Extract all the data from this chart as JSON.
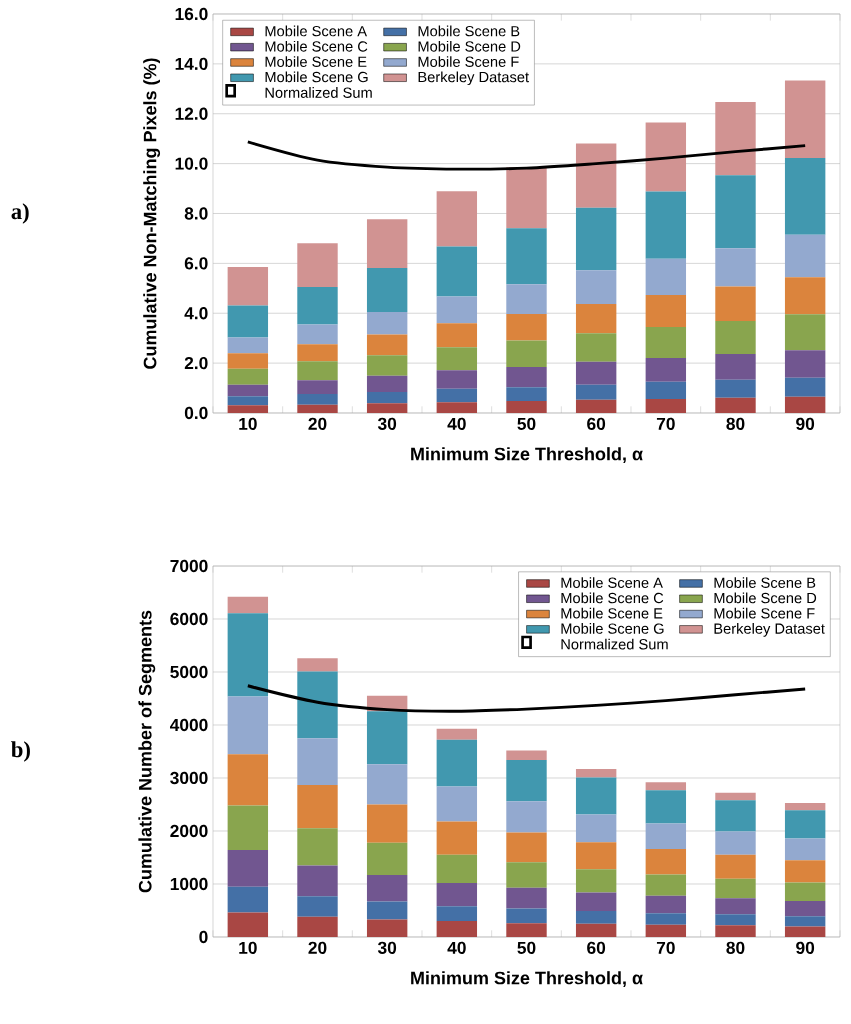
{
  "chart_data": [
    {
      "type": "bar",
      "stacked": true,
      "categories": [
        "10",
        "20",
        "30",
        "40",
        "50",
        "60",
        "70",
        "80",
        "90"
      ],
      "xlabel": "Minimum Size Threshold, α",
      "ylabel": "Cumulative Non-Matching Pixels (%)",
      "ylim": [
        0,
        16
      ],
      "yticks": [
        {
          "value": 0,
          "label": "0.0"
        },
        {
          "value": 2,
          "label": "2.0"
        },
        {
          "value": 4,
          "label": "4.0"
        },
        {
          "value": 6,
          "label": "6.0"
        },
        {
          "value": 8,
          "label": "8.0"
        },
        {
          "value": 10,
          "label": "10.0"
        },
        {
          "value": 12,
          "label": "12.0"
        },
        {
          "value": 14,
          "label": "14.0"
        },
        {
          "value": 16,
          "label": "16.0"
        }
      ],
      "grid": "y",
      "legend": "top left",
      "annotations": [
        "a)"
      ],
      "series": [
        {
          "name": "Mobile Scene A",
          "color": "#a94744",
          "values": [
            0.31,
            0.33,
            0.39,
            0.43,
            0.48,
            0.53,
            0.56,
            0.61,
            0.65
          ]
        },
        {
          "name": "Mobile Scene B",
          "color": "#4470a6",
          "values": [
            0.36,
            0.43,
            0.45,
            0.54,
            0.55,
            0.6,
            0.69,
            0.72,
            0.76
          ]
        },
        {
          "name": "Mobile Scene C",
          "color": "#715690",
          "values": [
            0.46,
            0.55,
            0.65,
            0.74,
            0.81,
            0.92,
            0.96,
            1.04,
            1.11
          ]
        },
        {
          "name": "Mobile Scene D",
          "color": "#89a54e",
          "values": [
            0.64,
            0.76,
            0.83,
            0.93,
            1.07,
            1.15,
            1.24,
            1.32,
            1.44
          ]
        },
        {
          "name": "Mobile Scene E",
          "color": "#db843d",
          "values": [
            0.63,
            0.69,
            0.83,
            0.96,
            1.06,
            1.17,
            1.28,
            1.38,
            1.48
          ]
        },
        {
          "name": "Mobile Scene F",
          "color": "#93a9cf",
          "values": [
            0.63,
            0.79,
            0.9,
            1.07,
            1.19,
            1.35,
            1.46,
            1.54,
            1.71
          ]
        },
        {
          "name": "Mobile Scene G",
          "color": "#4198af",
          "values": [
            1.28,
            1.5,
            1.76,
            2.01,
            2.25,
            2.51,
            2.69,
            2.92,
            3.08
          ]
        },
        {
          "name": "Berkeley Dataset",
          "color": "#d19392",
          "values": [
            1.54,
            1.76,
            1.96,
            2.21,
            2.44,
            2.58,
            2.77,
            2.94,
            3.1
          ]
        },
        {
          "name": "Normalized Sum",
          "type": "line",
          "color": "#000000",
          "values": [
            10.87,
            10.14,
            9.86,
            9.78,
            9.82,
            10.0,
            10.22,
            10.48,
            10.72
          ]
        }
      ]
    },
    {
      "type": "bar",
      "stacked": true,
      "categories": [
        "10",
        "20",
        "30",
        "40",
        "50",
        "60",
        "70",
        "80",
        "90"
      ],
      "xlabel": "Minimum Size Threshold, α",
      "ylabel": "Cumulative Number of Segments",
      "ylim": [
        0,
        7000
      ],
      "yticks": [
        0,
        1000,
        2000,
        3000,
        4000,
        5000,
        6000,
        7000
      ],
      "grid": "y",
      "legend": "top right",
      "annotations": [
        "b)"
      ],
      "series": [
        {
          "name": "Mobile Scene A",
          "color": "#a94744",
          "values": [
            460,
            380,
            330,
            300,
            260,
            250,
            230,
            220,
            200
          ]
        },
        {
          "name": "Mobile Scene B",
          "color": "#4470a6",
          "values": [
            490,
            390,
            340,
            280,
            280,
            240,
            220,
            210,
            190
          ]
        },
        {
          "name": "Mobile Scene C",
          "color": "#715690",
          "values": [
            690,
            580,
            500,
            440,
            390,
            350,
            330,
            300,
            290
          ]
        },
        {
          "name": "Mobile Scene D",
          "color": "#89a54e",
          "values": [
            840,
            700,
            610,
            530,
            480,
            440,
            400,
            370,
            350
          ]
        },
        {
          "name": "Mobile Scene E",
          "color": "#db843d",
          "values": [
            970,
            820,
            720,
            630,
            560,
            510,
            480,
            450,
            420
          ]
        },
        {
          "name": "Mobile Scene F",
          "color": "#93a9cf",
          "values": [
            1090,
            880,
            760,
            660,
            590,
            520,
            480,
            440,
            410
          ]
        },
        {
          "name": "Mobile Scene G",
          "color": "#4198af",
          "values": [
            1570,
            1260,
            1000,
            880,
            780,
            700,
            630,
            590,
            530
          ]
        },
        {
          "name": "Berkeley Dataset",
          "color": "#d19392",
          "values": [
            310,
            250,
            290,
            210,
            180,
            160,
            150,
            140,
            140
          ]
        },
        {
          "name": "Normalized Sum",
          "type": "line",
          "color": "#000000",
          "values": [
            4740,
            4430,
            4290,
            4260,
            4300,
            4370,
            4460,
            4570,
            4680
          ]
        }
      ]
    }
  ]
}
